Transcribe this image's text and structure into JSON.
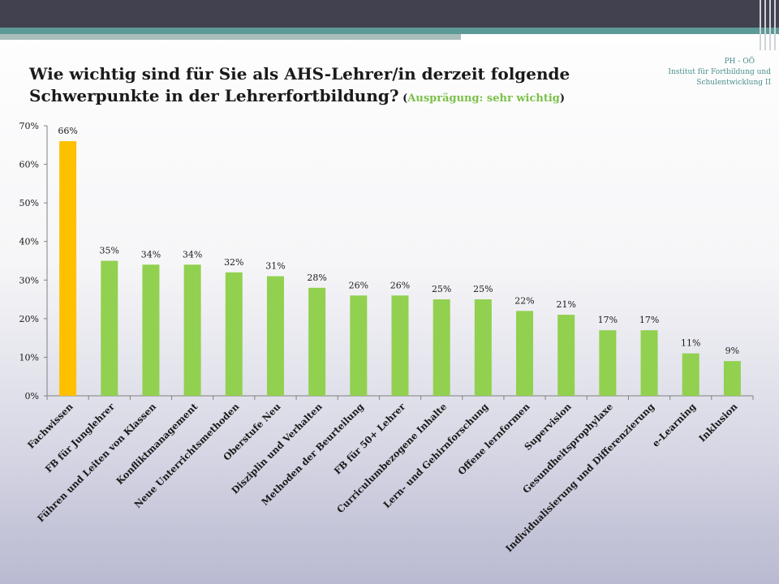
{
  "slide": {
    "org_left": "PH - OÖ",
    "org_right": "Institut für Fortbildung und Schulentwicklung II",
    "title_main": "Wie wichtig sind für Sie als AHS-Lehrer/in derzeit  folgende Schwerpunkte in der Lehrerfortbildung?",
    "title_sub_open": " (",
    "title_sub": "Ausprägung: sehr wichtig",
    "title_sub_close": ")"
  },
  "colors": {
    "highlight": "#ffc000",
    "bar": "#92d050",
    "topbar": "#41414f",
    "teal": "#5d9a97"
  },
  "chart_data": {
    "type": "bar",
    "categories": [
      "Fachwissen",
      "FB für Junglehrer",
      "Führen und Leiten von Klassen",
      "Konfliktmanagement",
      "Neue Unterrichtsmethoden",
      "Oberstufe Neu",
      "Disziplin und Verhalten",
      "Methoden der Beurteilung",
      "FB für 50+ Lehrer",
      "Curriculumbezogene Inhalte",
      "Lern- und Gehirnforschung",
      "Offene lernformen",
      "Supervision",
      "Gesundheitsprophylaxe",
      "Individualisierung und Differenzierung",
      "e-Learning",
      "Inklusion"
    ],
    "values": [
      66,
      35,
      34,
      34,
      32,
      31,
      28,
      26,
      26,
      25,
      25,
      22,
      21,
      17,
      17,
      11,
      9
    ],
    "value_labels": [
      "66%",
      "35%",
      "34%",
      "34%",
      "32%",
      "31%",
      "28%",
      "26%",
      "26%",
      "25%",
      "25%",
      "22%",
      "21%",
      "17%",
      "17%",
      "11%",
      "9%"
    ],
    "highlight_index": 0,
    "yticks": [
      0,
      10,
      20,
      30,
      40,
      50,
      60,
      70
    ],
    "ytick_labels": [
      "0%",
      "10%",
      "20%",
      "30%",
      "40%",
      "50%",
      "60%",
      "70%"
    ],
    "ylim": [
      0,
      70
    ],
    "title": "",
    "xlabel": "",
    "ylabel": "",
    "grid": false,
    "legend": false
  }
}
